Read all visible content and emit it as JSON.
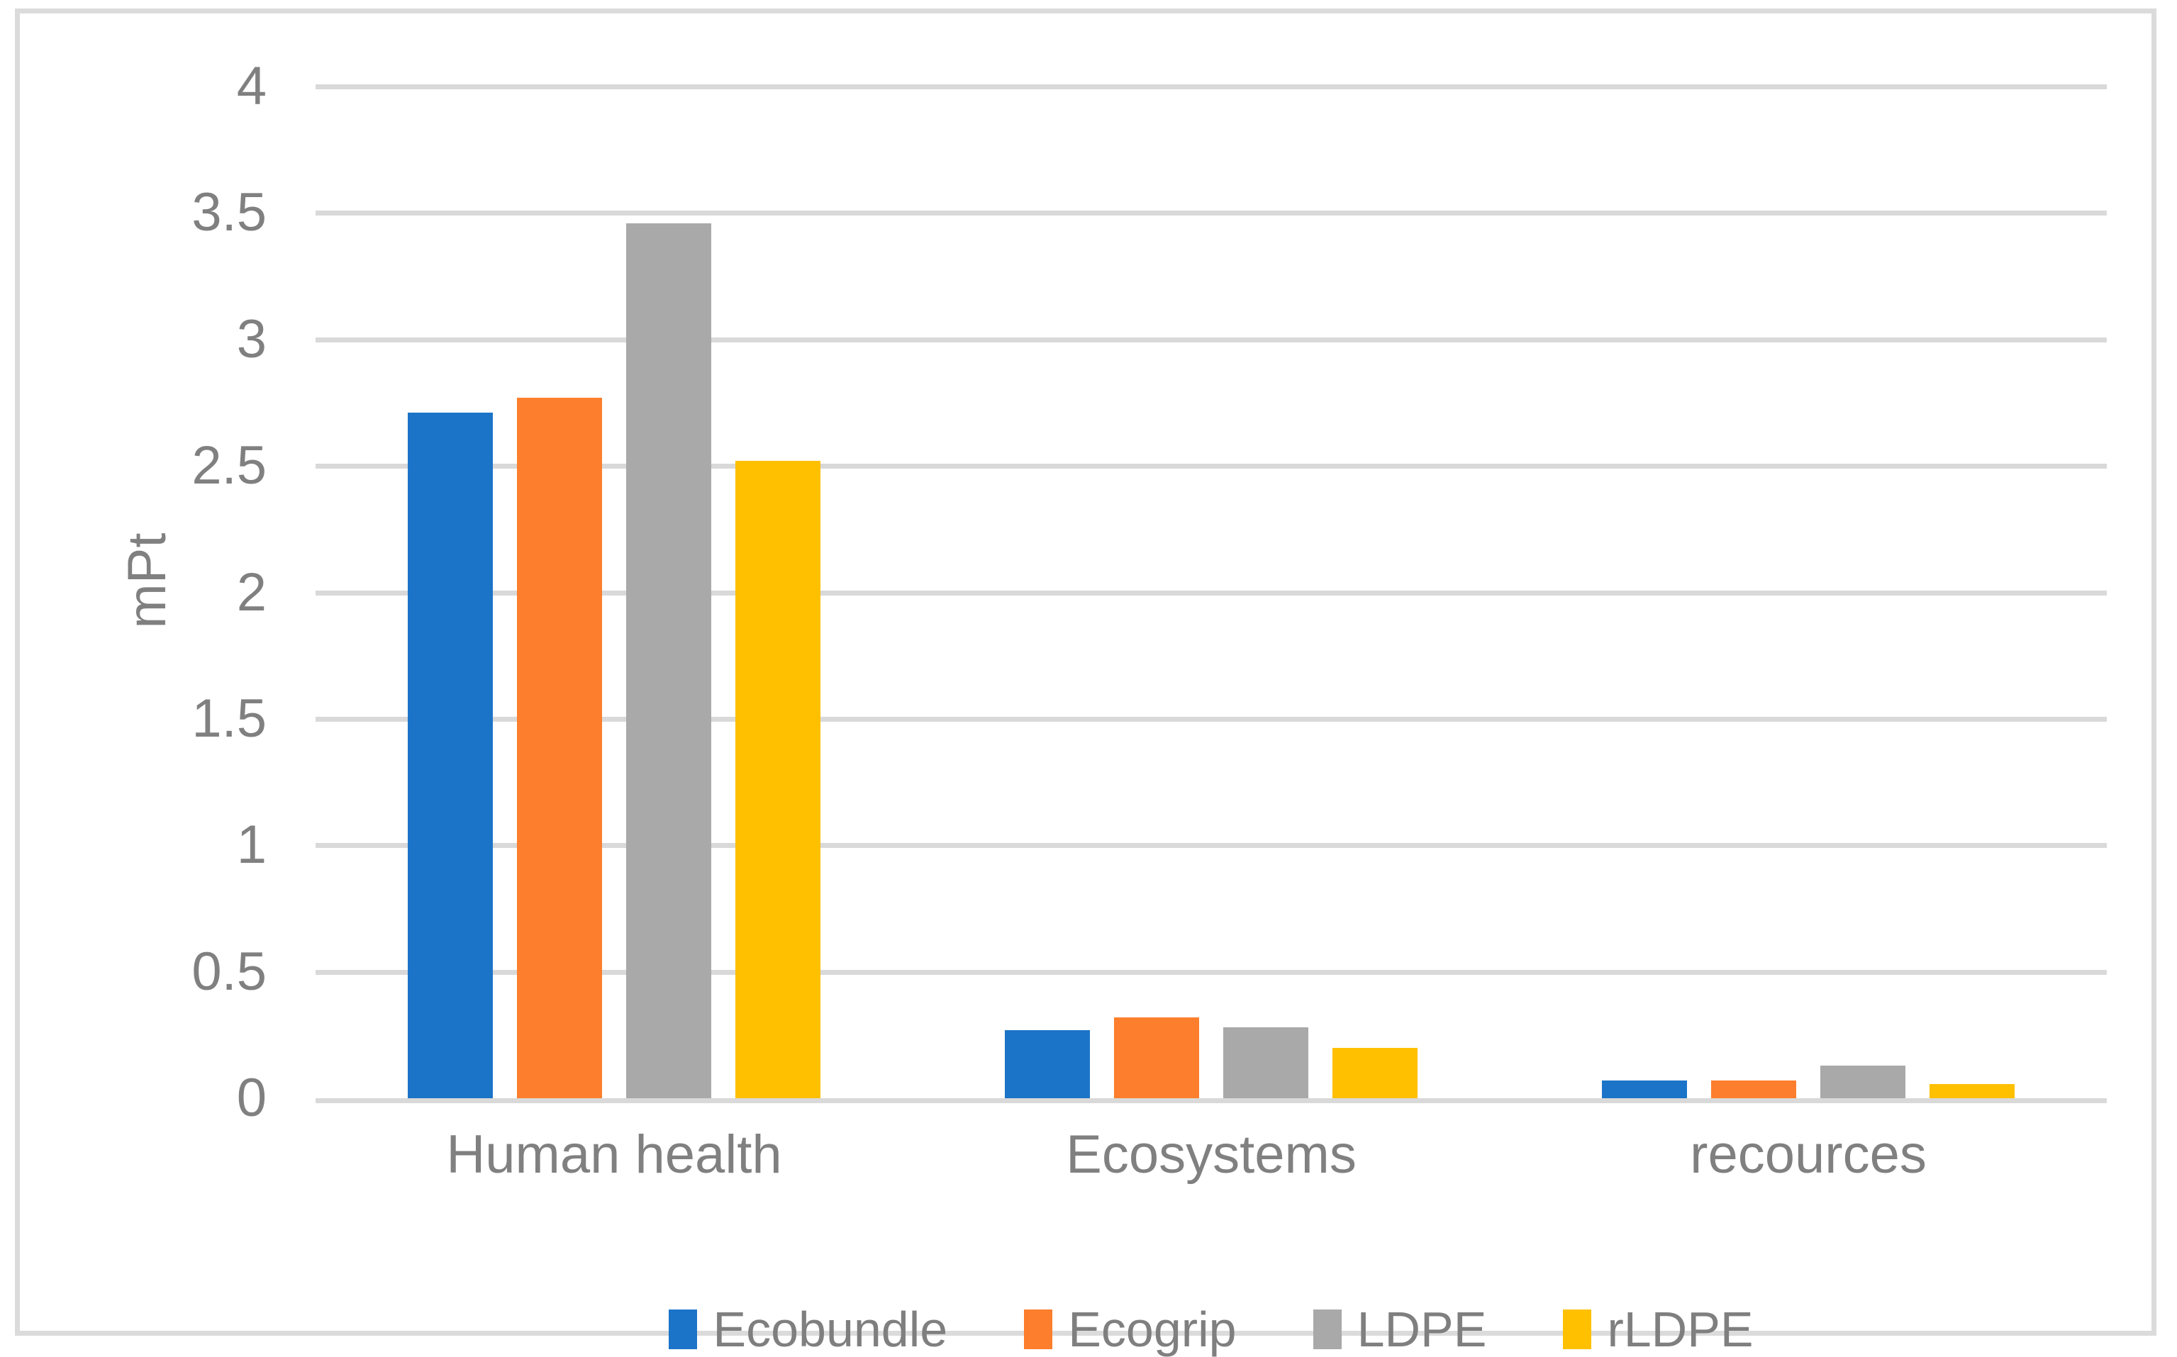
{
  "figure": {
    "background": "#ffffff",
    "border_color": "#dbdbdb",
    "gridline_color": "#d9d9d9",
    "tick_label_color": "#808080",
    "legend_label_color": "#7f7f7f"
  },
  "chart_data": {
    "type": "bar",
    "title": "",
    "xlabel": "",
    "ylabel": "mPt",
    "ylim": [
      0,
      4
    ],
    "ytick_step": 0.5,
    "yticks": [
      "4",
      "3.5",
      "3",
      "2.5",
      "2",
      "1.5",
      "1",
      "0.5",
      "0"
    ],
    "grid": true,
    "legend_position": "bottom",
    "categories": [
      "Human health",
      "Ecosystems",
      "recources"
    ],
    "series": [
      {
        "name": "Ecobundle",
        "color": "#1b74c8",
        "values": [
          2.71,
          0.27,
          0.07
        ]
      },
      {
        "name": "Ecogrip",
        "color": "#fd7e2c",
        "values": [
          2.77,
          0.32,
          0.07
        ]
      },
      {
        "name": "LDPE",
        "color": "#a9a9a9",
        "values": [
          3.46,
          0.28,
          0.13
        ]
      },
      {
        "name": "rLDPE",
        "color": "#ffc000",
        "values": [
          2.52,
          0.2,
          0.055
        ]
      }
    ]
  }
}
